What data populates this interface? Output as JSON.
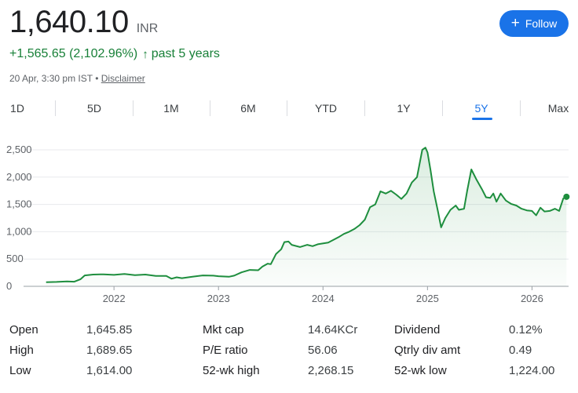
{
  "header": {
    "price": "1,640.10",
    "currency": "INR",
    "change": "+1,565.65 (2,102.96%)",
    "change_arrow": "↑",
    "period_text": "past 5 years",
    "timestamp": "20 Apr, 3:30 pm IST",
    "separator": "•",
    "disclaimer": "Disclaimer",
    "follow_label": "Follow",
    "follow_icon": "plus-icon",
    "accent_color": "#1a73e8",
    "positive_color": "#188038"
  },
  "ranges": [
    {
      "label": "1D",
      "active": false
    },
    {
      "label": "5D",
      "active": false
    },
    {
      "label": "1M",
      "active": false
    },
    {
      "label": "6M",
      "active": false
    },
    {
      "label": "YTD",
      "active": false
    },
    {
      "label": "1Y",
      "active": false
    },
    {
      "label": "5Y",
      "active": true
    },
    {
      "label": "Max",
      "active": false
    }
  ],
  "chart_data": {
    "type": "area",
    "line_color": "#1e8e3e",
    "ylim": [
      0,
      2600
    ],
    "yticks": [
      {
        "value": 0,
        "label": "0"
      },
      {
        "value": 500,
        "label": "500"
      },
      {
        "value": 1000,
        "label": "1,000"
      },
      {
        "value": 1500,
        "label": "1,500"
      },
      {
        "value": 2000,
        "label": "2,000"
      },
      {
        "value": 2500,
        "label": "2,500"
      }
    ],
    "xlim": [
      2021.3,
      2026.35
    ],
    "xticks": [
      {
        "value": 2022,
        "label": "2022"
      },
      {
        "value": 2023,
        "label": "2023"
      },
      {
        "value": 2024,
        "label": "2024"
      },
      {
        "value": 2025,
        "label": "2025"
      },
      {
        "value": 2026,
        "label": "2026"
      }
    ],
    "grid": true,
    "points": [
      [
        2021.35,
        75
      ],
      [
        2021.45,
        80
      ],
      [
        2021.55,
        90
      ],
      [
        2021.62,
        85
      ],
      [
        2021.68,
        130
      ],
      [
        2021.72,
        200
      ],
      [
        2021.8,
        215
      ],
      [
        2021.9,
        220
      ],
      [
        2022.0,
        210
      ],
      [
        2022.1,
        225
      ],
      [
        2022.2,
        205
      ],
      [
        2022.3,
        215
      ],
      [
        2022.4,
        190
      ],
      [
        2022.5,
        190
      ],
      [
        2022.55,
        140
      ],
      [
        2022.6,
        165
      ],
      [
        2022.65,
        150
      ],
      [
        2022.75,
        175
      ],
      [
        2022.85,
        200
      ],
      [
        2022.95,
        195
      ],
      [
        2023.0,
        185
      ],
      [
        2023.1,
        175
      ],
      [
        2023.15,
        195
      ],
      [
        2023.22,
        255
      ],
      [
        2023.3,
        300
      ],
      [
        2023.38,
        295
      ],
      [
        2023.42,
        360
      ],
      [
        2023.47,
        415
      ],
      [
        2023.5,
        405
      ],
      [
        2023.55,
        590
      ],
      [
        2023.6,
        680
      ],
      [
        2023.63,
        810
      ],
      [
        2023.67,
        820
      ],
      [
        2023.7,
        760
      ],
      [
        2023.78,
        720
      ],
      [
        2023.85,
        760
      ],
      [
        2023.9,
        735
      ],
      [
        2023.95,
        770
      ],
      [
        2024.05,
        800
      ],
      [
        2024.1,
        850
      ],
      [
        2024.15,
        900
      ],
      [
        2024.2,
        960
      ],
      [
        2024.25,
        1000
      ],
      [
        2024.3,
        1050
      ],
      [
        2024.35,
        1120
      ],
      [
        2024.4,
        1220
      ],
      [
        2024.45,
        1450
      ],
      [
        2024.5,
        1500
      ],
      [
        2024.55,
        1740
      ],
      [
        2024.6,
        1700
      ],
      [
        2024.65,
        1750
      ],
      [
        2024.7,
        1680
      ],
      [
        2024.75,
        1600
      ],
      [
        2024.8,
        1700
      ],
      [
        2024.85,
        1900
      ],
      [
        2024.9,
        2000
      ],
      [
        2024.95,
        2500
      ],
      [
        2024.98,
        2540
      ],
      [
        2025.0,
        2450
      ],
      [
        2025.03,
        2120
      ],
      [
        2025.06,
        1740
      ],
      [
        2025.1,
        1370
      ],
      [
        2025.13,
        1080
      ],
      [
        2025.17,
        1250
      ],
      [
        2025.22,
        1400
      ],
      [
        2025.27,
        1480
      ],
      [
        2025.3,
        1400
      ],
      [
        2025.35,
        1420
      ],
      [
        2025.38,
        1750
      ],
      [
        2025.42,
        2140
      ],
      [
        2025.47,
        1950
      ],
      [
        2025.52,
        1780
      ],
      [
        2025.56,
        1630
      ],
      [
        2025.6,
        1620
      ],
      [
        2025.63,
        1700
      ],
      [
        2025.66,
        1550
      ],
      [
        2025.7,
        1700
      ],
      [
        2025.75,
        1570
      ],
      [
        2025.8,
        1510
      ],
      [
        2025.85,
        1480
      ],
      [
        2025.9,
        1420
      ],
      [
        2025.95,
        1390
      ],
      [
        2026.0,
        1380
      ],
      [
        2026.04,
        1300
      ],
      [
        2026.08,
        1440
      ],
      [
        2026.12,
        1370
      ],
      [
        2026.17,
        1380
      ],
      [
        2026.22,
        1420
      ],
      [
        2026.26,
        1380
      ],
      [
        2026.3,
        1610
      ],
      [
        2026.33,
        1640
      ]
    ]
  },
  "stats": [
    [
      {
        "label": "Open",
        "value": "1,645.85"
      },
      {
        "label": "High",
        "value": "1,689.65"
      },
      {
        "label": "Low",
        "value": "1,614.00"
      }
    ],
    [
      {
        "label": "Mkt cap",
        "value": "14.64KCr"
      },
      {
        "label": "P/E ratio",
        "value": "56.06"
      },
      {
        "label": "52-wk high",
        "value": "2,268.15"
      }
    ],
    [
      {
        "label": "Dividend",
        "value": "0.12%"
      },
      {
        "label": "Qtrly div amt",
        "value": "0.49"
      },
      {
        "label": "52-wk low",
        "value": "1,224.00"
      }
    ]
  ]
}
